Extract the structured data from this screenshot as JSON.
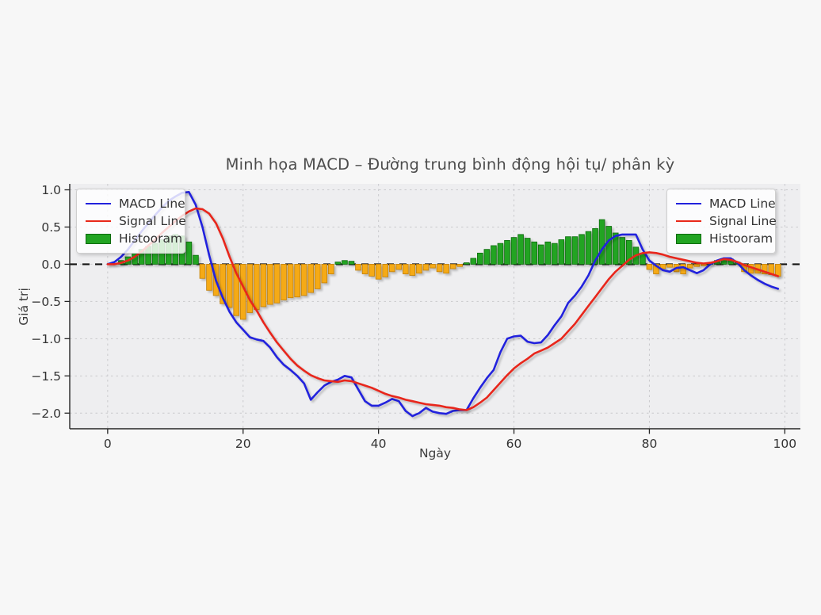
{
  "figure": {
    "title": "Minh họa MACD – Đường trung bình động hội tụ/ phân kỳ",
    "xlabel": "Ngày",
    "ylabel": "Giá trị"
  },
  "legend": {
    "items": [
      {
        "label": "MACD Line",
        "type": "line",
        "color": "#2222dd"
      },
      {
        "label": "Signal Line",
        "type": "line",
        "color": "#e8281a"
      },
      {
        "label": "Histooram",
        "type": "patch",
        "color": "#22a422"
      }
    ],
    "positions": [
      "upper left",
      "upper right"
    ]
  },
  "colors": {
    "macd_line": "#2222dd",
    "signal_line": "#e8281a",
    "histogram_positive": "#22a422",
    "histogram_positive_edge": "#0e6b0e",
    "histogram_negative": "#f5aa14",
    "histogram_negative_edge": "#c07f08",
    "zero_line": "#141414",
    "grid": "#c9c9cc",
    "spine": "#262626",
    "plot_background": "#eeeef0",
    "figure_background": "#f7f7f7"
  },
  "chart_data": {
    "type": "line+bar",
    "title": "Minh họa MACD – Đường trung bình động hội tụ/ phân kỳ",
    "xlabel": "Ngày",
    "ylabel": "Giá trị",
    "x": {
      "from": 0,
      "to": 99,
      "step": 1
    },
    "xticks": [
      0,
      20,
      40,
      60,
      80,
      100
    ],
    "yticks": [
      1.0,
      0.5,
      0.0,
      -0.5,
      -1.0,
      -1.5,
      -2.0
    ],
    "xlim": [
      -5.6,
      102.3
    ],
    "ylim": [
      -2.21,
      1.08
    ],
    "grid": true,
    "zero_line": {
      "y": 0,
      "style": "dashed",
      "color": "#141414"
    },
    "series": [
      {
        "name": "MACD Line",
        "type": "line",
        "color": "#2222dd",
        "values": [
          0.0,
          0.03,
          0.1,
          0.2,
          0.32,
          0.44,
          0.55,
          0.66,
          0.76,
          0.85,
          0.91,
          0.96,
          0.97,
          0.8,
          0.5,
          0.12,
          -0.22,
          -0.45,
          -0.64,
          -0.78,
          -0.88,
          -0.98,
          -1.01,
          -1.03,
          -1.12,
          -1.25,
          -1.35,
          -1.42,
          -1.5,
          -1.6,
          -1.82,
          -1.72,
          -1.63,
          -1.58,
          -1.55,
          -1.5,
          -1.52,
          -1.68,
          -1.84,
          -1.9,
          -1.9,
          -1.86,
          -1.81,
          -1.84,
          -1.97,
          -2.04,
          -2.0,
          -1.93,
          -1.98,
          -2.0,
          -2.01,
          -1.97,
          -1.96,
          -1.96,
          -1.8,
          -1.66,
          -1.53,
          -1.42,
          -1.18,
          -1.0,
          -0.97,
          -0.96,
          -1.04,
          -1.06,
          -1.05,
          -0.95,
          -0.82,
          -0.7,
          -0.52,
          -0.42,
          -0.3,
          -0.15,
          0.05,
          0.2,
          0.32,
          0.38,
          0.4,
          0.4,
          0.4,
          0.2,
          0.05,
          -0.02,
          -0.08,
          -0.1,
          -0.05,
          -0.04,
          -0.08,
          -0.12,
          -0.08,
          0.0,
          0.05,
          0.08,
          0.08,
          0.02,
          -0.08,
          -0.15,
          -0.21,
          -0.26,
          -0.3,
          -0.33
        ]
      },
      {
        "name": "Signal Line",
        "type": "line",
        "color": "#e8281a",
        "values": [
          0.0,
          0.0,
          0.02,
          0.05,
          0.1,
          0.17,
          0.25,
          0.33,
          0.42,
          0.5,
          0.58,
          0.65,
          0.71,
          0.75,
          0.74,
          0.68,
          0.55,
          0.35,
          0.1,
          -0.12,
          -0.3,
          -0.48,
          -0.62,
          -0.78,
          -0.92,
          -1.05,
          -1.16,
          -1.27,
          -1.36,
          -1.43,
          -1.49,
          -1.53,
          -1.56,
          -1.57,
          -1.58,
          -1.56,
          -1.57,
          -1.6,
          -1.63,
          -1.66,
          -1.7,
          -1.74,
          -1.77,
          -1.79,
          -1.82,
          -1.84,
          -1.86,
          -1.88,
          -1.89,
          -1.9,
          -1.92,
          -1.93,
          -1.95,
          -1.96,
          -1.92,
          -1.86,
          -1.79,
          -1.69,
          -1.59,
          -1.49,
          -1.4,
          -1.33,
          -1.27,
          -1.2,
          -1.16,
          -1.12,
          -1.06,
          -1.0,
          -0.9,
          -0.8,
          -0.68,
          -0.56,
          -0.44,
          -0.32,
          -0.2,
          -0.1,
          -0.02,
          0.06,
          0.12,
          0.15,
          0.16,
          0.15,
          0.13,
          0.1,
          0.08,
          0.06,
          0.04,
          0.02,
          0.01,
          0.02,
          0.04,
          0.07,
          0.06,
          0.03,
          -0.01,
          -0.04,
          -0.07,
          -0.1,
          -0.13,
          -0.16
        ]
      },
      {
        "name": "Histooram",
        "type": "bar",
        "color_positive": "#22a422",
        "color_negative": "#f5aa14",
        "values": [
          0.0,
          0.01,
          0.05,
          0.1,
          0.15,
          0.2,
          0.24,
          0.28,
          0.33,
          0.38,
          0.4,
          0.38,
          0.3,
          0.12,
          -0.19,
          -0.35,
          -0.42,
          -0.53,
          -0.58,
          -0.69,
          -0.74,
          -0.65,
          -0.61,
          -0.57,
          -0.54,
          -0.52,
          -0.48,
          -0.45,
          -0.44,
          -0.42,
          -0.38,
          -0.33,
          -0.25,
          -0.13,
          0.03,
          0.05,
          0.04,
          -0.08,
          -0.13,
          -0.16,
          -0.2,
          -0.17,
          -0.1,
          -0.07,
          -0.13,
          -0.15,
          -0.12,
          -0.08,
          -0.05,
          -0.1,
          -0.12,
          -0.06,
          -0.03,
          0.02,
          0.08,
          0.15,
          0.2,
          0.25,
          0.28,
          0.32,
          0.36,
          0.4,
          0.35,
          0.3,
          0.26,
          0.3,
          0.28,
          0.33,
          0.37,
          0.37,
          0.4,
          0.44,
          0.48,
          0.6,
          0.51,
          0.42,
          0.36,
          0.32,
          0.23,
          0.14,
          -0.07,
          -0.13,
          -0.06,
          -0.04,
          -0.1,
          -0.13,
          -0.05,
          -0.03,
          -0.02,
          0.02,
          0.05,
          0.08,
          0.07,
          0.03,
          -0.1,
          -0.12,
          -0.12,
          -0.13,
          -0.14,
          -0.16
        ]
      }
    ]
  }
}
